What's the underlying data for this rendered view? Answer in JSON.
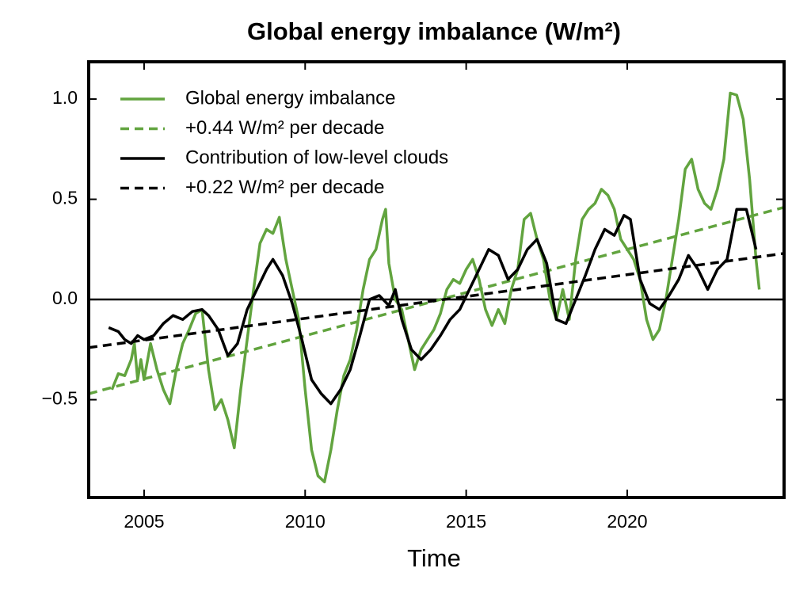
{
  "chart_data": {
    "type": "line",
    "title": "Global energy imbalance (W/m²)",
    "x_label": "Time",
    "xlim": [
      2003.28,
      2024.87
    ],
    "ylim": [
      -0.988,
      1.186
    ],
    "xticks": [
      2005,
      2010,
      2015,
      2020
    ],
    "yticks": [
      {
        "value": -0.5,
        "label": "−0.5"
      },
      {
        "value": 0,
        "label": "0.0"
      },
      0.5,
      {
        "value": 1,
        "label": "1.0"
      }
    ],
    "hline": 0,
    "legend": "upper left",
    "series": [
      {
        "name": "Global energy imbalance",
        "color": "#62a43f",
        "style": "solid",
        "x": [
          2004.0,
          2004.2,
          2004.4,
          2004.6,
          2004.7,
          2004.8,
          2004.9,
          2005.0,
          2005.2,
          2005.4,
          2005.6,
          2005.8,
          2006.0,
          2006.2,
          2006.4,
          2006.6,
          2006.8,
          2007.0,
          2007.2,
          2007.4,
          2007.6,
          2007.8,
          2008.0,
          2008.2,
          2008.4,
          2008.6,
          2008.8,
          2009.0,
          2009.2,
          2009.4,
          2009.6,
          2009.8,
          2010.0,
          2010.2,
          2010.4,
          2010.6,
          2010.8,
          2011.0,
          2011.2,
          2011.4,
          2011.6,
          2011.8,
          2012.0,
          2012.2,
          2012.4,
          2012.5,
          2012.6,
          2012.8,
          2013.0,
          2013.2,
          2013.4,
          2013.6,
          2013.8,
          2014.0,
          2014.2,
          2014.4,
          2014.6,
          2014.8,
          2015.0,
          2015.2,
          2015.4,
          2015.6,
          2015.8,
          2016.0,
          2016.2,
          2016.4,
          2016.6,
          2016.8,
          2017.0,
          2017.2,
          2017.4,
          2017.6,
          2017.8,
          2018.0,
          2018.2,
          2018.4,
          2018.6,
          2018.8,
          2019.0,
          2019.2,
          2019.4,
          2019.6,
          2019.8,
          2020.0,
          2020.2,
          2020.4,
          2020.6,
          2020.8,
          2021.0,
          2021.2,
          2021.4,
          2021.6,
          2021.8,
          2022.0,
          2022.2,
          2022.4,
          2022.6,
          2022.8,
          2023.0,
          2023.2,
          2023.4,
          2023.6,
          2023.8,
          2024.0,
          2024.1
        ],
        "values": [
          -0.45,
          -0.37,
          -0.38,
          -0.3,
          -0.22,
          -0.4,
          -0.3,
          -0.4,
          -0.22,
          -0.35,
          -0.45,
          -0.52,
          -0.35,
          -0.22,
          -0.15,
          -0.07,
          -0.05,
          -0.35,
          -0.55,
          -0.5,
          -0.6,
          -0.74,
          -0.45,
          -0.2,
          0.05,
          0.28,
          0.35,
          0.33,
          0.41,
          0.2,
          0.05,
          -0.1,
          -0.45,
          -0.75,
          -0.88,
          -0.91,
          -0.75,
          -0.55,
          -0.38,
          -0.3,
          -0.15,
          0.05,
          0.2,
          0.25,
          0.4,
          0.45,
          0.18,
          0.0,
          -0.05,
          -0.2,
          -0.35,
          -0.25,
          -0.2,
          -0.15,
          -0.07,
          0.05,
          0.1,
          0.08,
          0.15,
          0.2,
          0.1,
          -0.05,
          -0.13,
          -0.05,
          -0.12,
          0.05,
          0.15,
          0.4,
          0.43,
          0.3,
          0.2,
          0.0,
          -0.1,
          0.05,
          -0.1,
          0.2,
          0.4,
          0.45,
          0.48,
          0.55,
          0.52,
          0.45,
          0.3,
          0.25,
          0.2,
          0.1,
          -0.1,
          -0.2,
          -0.15,
          0.0,
          0.2,
          0.4,
          0.65,
          0.7,
          0.55,
          0.48,
          0.45,
          0.55,
          0.7,
          1.03,
          1.02,
          0.9,
          0.6,
          0.2,
          0.05
        ]
      },
      {
        "name": "+0.44 W/m² per decade",
        "color": "#62a43f",
        "style": "dashed",
        "x": [
          2003.28,
          2024.87
        ],
        "values": [
          -0.47,
          0.46
        ]
      },
      {
        "name": "Contribution of low-level clouds",
        "color": "#000000",
        "style": "solid",
        "x": [
          2003.9,
          2004.2,
          2004.4,
          2004.6,
          2004.8,
          2005.0,
          2005.3,
          2005.6,
          2005.9,
          2006.2,
          2006.5,
          2006.8,
          2007.0,
          2007.3,
          2007.6,
          2007.9,
          2008.2,
          2008.5,
          2008.8,
          2009.0,
          2009.3,
          2009.6,
          2009.9,
          2010.2,
          2010.5,
          2010.8,
          2011.1,
          2011.4,
          2011.7,
          2012.0,
          2012.3,
          2012.6,
          2012.8,
          2013.0,
          2013.3,
          2013.6,
          2013.9,
          2014.2,
          2014.5,
          2014.8,
          2015.1,
          2015.4,
          2015.7,
          2016.0,
          2016.3,
          2016.6,
          2016.9,
          2017.2,
          2017.5,
          2017.8,
          2018.1,
          2018.4,
          2018.7,
          2019.0,
          2019.3,
          2019.6,
          2019.9,
          2020.1,
          2020.4,
          2020.7,
          2021.0,
          2021.3,
          2021.6,
          2021.9,
          2022.2,
          2022.5,
          2022.8,
          2023.1,
          2023.4,
          2023.7,
          2024.0
        ],
        "values": [
          -0.14,
          -0.16,
          -0.2,
          -0.22,
          -0.18,
          -0.2,
          -0.18,
          -0.12,
          -0.08,
          -0.1,
          -0.06,
          -0.05,
          -0.08,
          -0.15,
          -0.28,
          -0.22,
          -0.05,
          0.05,
          0.15,
          0.2,
          0.12,
          -0.02,
          -0.2,
          -0.4,
          -0.47,
          -0.52,
          -0.45,
          -0.35,
          -0.18,
          0.0,
          0.02,
          -0.03,
          0.05,
          -0.1,
          -0.25,
          -0.3,
          -0.25,
          -0.18,
          -0.1,
          -0.05,
          0.05,
          0.15,
          0.25,
          0.22,
          0.1,
          0.15,
          0.25,
          0.3,
          0.18,
          -0.1,
          -0.12,
          0.0,
          0.12,
          0.25,
          0.35,
          0.32,
          0.42,
          0.4,
          0.1,
          -0.02,
          -0.05,
          0.02,
          0.1,
          0.22,
          0.15,
          0.05,
          0.15,
          0.2,
          0.45,
          0.45,
          0.25
        ]
      },
      {
        "name": "+0.22 W/m² per decade",
        "color": "#000000",
        "style": "dashed",
        "x": [
          2003.28,
          2024.87
        ],
        "values": [
          -0.24,
          0.23
        ]
      }
    ]
  }
}
